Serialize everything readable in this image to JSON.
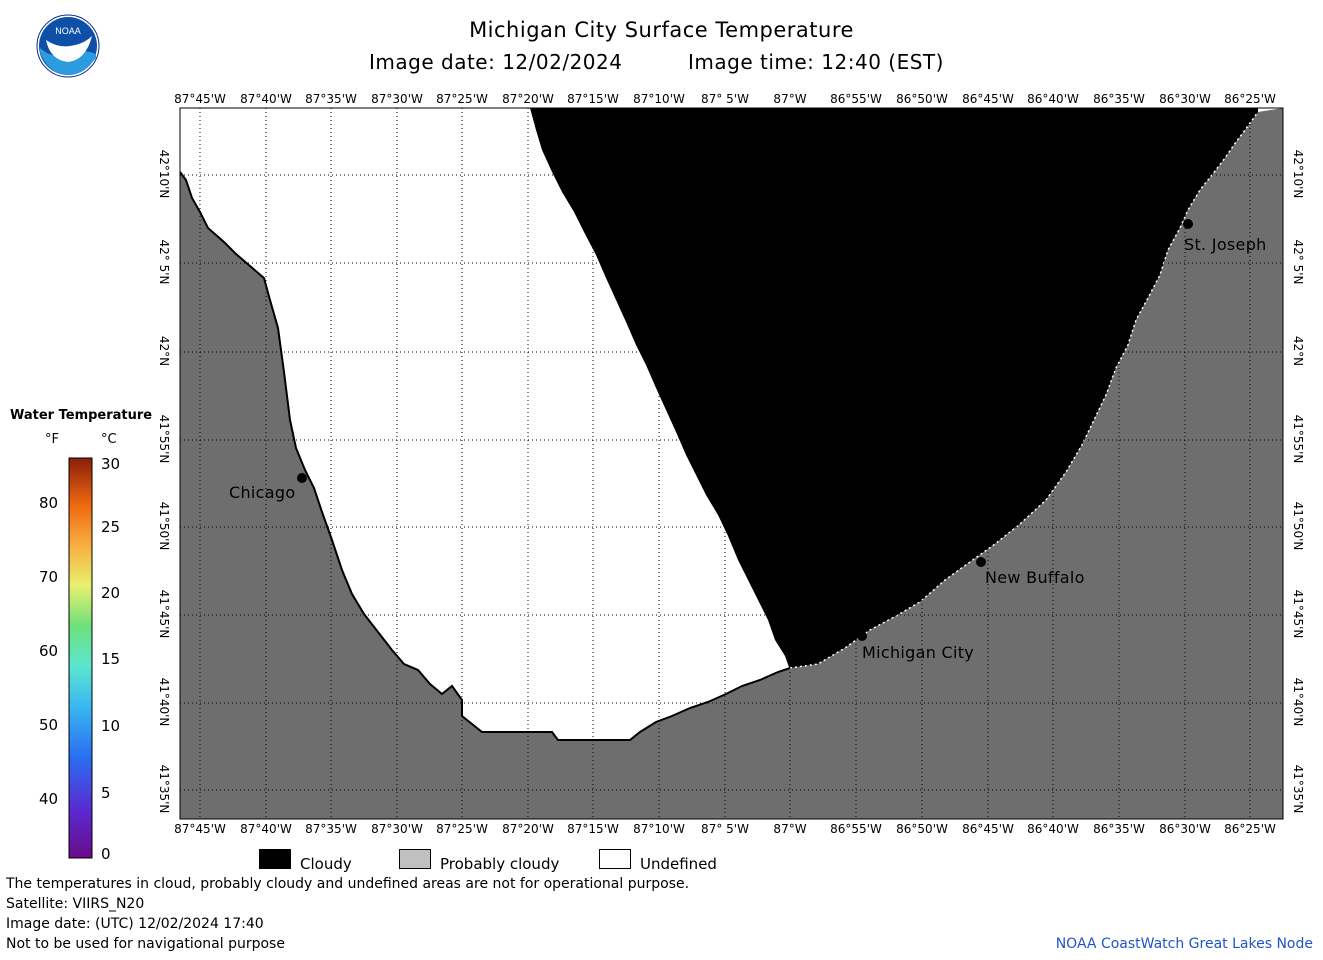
{
  "header": {
    "title": "Michigan City Surface Temperature",
    "image_date": "Image date: 12/02/2024",
    "image_time": "Image time: 12:40 (EST)"
  },
  "logo": {
    "text": "NOAA",
    "icon": "noaa-logo"
  },
  "axes": {
    "longitude_labels": [
      "87°45'W",
      "87°40'W",
      "87°35'W",
      "87°30'W",
      "87°25'W",
      "87°20'W",
      "87°15'W",
      "87°10'W",
      "87° 5'W",
      "87°W",
      "86°55'W",
      "86°50'W",
      "86°45'W",
      "86°40'W",
      "86°35'W",
      "86°30'W",
      "86°25'W"
    ],
    "latitude_labels": [
      "42°10'N",
      "42° 5'N",
      "42°N",
      "41°55'N",
      "41°50'N",
      "41°45'N",
      "41°40'N",
      "41°35'N"
    ]
  },
  "cities": {
    "chicago": "Chicago",
    "michigan_city": "Michigan City",
    "new_buffalo": "New Buffalo",
    "st_joseph": "St. Joseph"
  },
  "legend": {
    "title": "Water Temperature",
    "unit_f": "°F",
    "unit_c": "°C",
    "fahrenheit": [
      "80",
      "70",
      "60",
      "50",
      "40"
    ],
    "celsius": [
      "30",
      "25",
      "20",
      "15",
      "10",
      "5",
      "0"
    ]
  },
  "key": {
    "cloudy": "Cloudy",
    "probably_cloudy": "Probably cloudy",
    "undefined": "Undefined",
    "colors": {
      "cloudy": "#000000",
      "probably_cloudy": "#c0c0c0",
      "undefined": "#ffffff",
      "land": "#6e6e6e"
    }
  },
  "footer": {
    "line1": "The temperatures in cloud, probably cloudy and undefined areas are not for operational purpose.",
    "line2": "Satellite: VIIRS_N20",
    "line3": "Image date: (UTC) 12/02/2024  17:40",
    "line4": "Not to be used for navigational purpose",
    "credit": "NOAA CoastWatch Great Lakes Node"
  }
}
